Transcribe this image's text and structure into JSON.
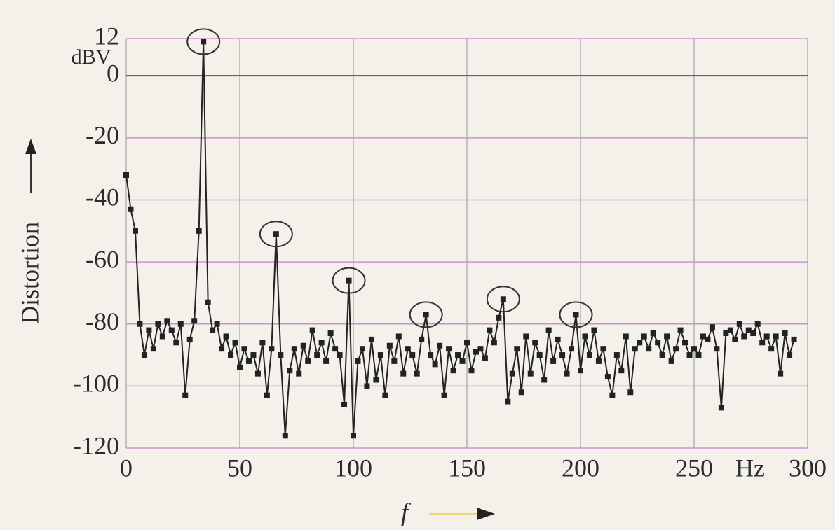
{
  "chart_data": {
    "type": "line",
    "y_label": "Distortion",
    "y_unit": "dBV",
    "x_label": "f",
    "x_unit": "Hz",
    "x": [
      0,
      2,
      4,
      6,
      8,
      10,
      12,
      14,
      16,
      18,
      20,
      22,
      24,
      26,
      28,
      30,
      32,
      34,
      36,
      38,
      40,
      42,
      44,
      46,
      48,
      50,
      52,
      54,
      56,
      58,
      60,
      62,
      64,
      66,
      68,
      70,
      72,
      74,
      76,
      78,
      80,
      82,
      84,
      86,
      88,
      90,
      92,
      94,
      96,
      98,
      100,
      102,
      104,
      106,
      108,
      110,
      112,
      114,
      116,
      118,
      120,
      122,
      124,
      126,
      128,
      130,
      132,
      134,
      136,
      138,
      140,
      142,
      144,
      146,
      148,
      150,
      152,
      154,
      156,
      158,
      160,
      162,
      164,
      166,
      168,
      170,
      172,
      174,
      176,
      178,
      180,
      182,
      184,
      186,
      188,
      190,
      192,
      194,
      196,
      198,
      200,
      202,
      204,
      206,
      208,
      210,
      212,
      214,
      216,
      218,
      220,
      222,
      224,
      226,
      228,
      230,
      232,
      234,
      236,
      238,
      240,
      242,
      244,
      246,
      248,
      250,
      252,
      254,
      256,
      258,
      260,
      262,
      264,
      266,
      268,
      270,
      272,
      274,
      276,
      278,
      280,
      282,
      284,
      286,
      288,
      290,
      292,
      294
    ],
    "series": [
      {
        "color": "#222222",
        "values": [
          -32,
          -43,
          -50,
          -80,
          -90,
          -82,
          -88,
          -80,
          -84,
          -79,
          -82,
          -86,
          -80,
          -103,
          -85,
          -79,
          -50,
          11,
          -73,
          -82,
          -80,
          -88,
          -84,
          -90,
          -86,
          -94,
          -88,
          -92,
          -90,
          -96,
          -86,
          -103,
          -88,
          -51,
          -90,
          -116,
          -95,
          -88,
          -96,
          -87,
          -92,
          -82,
          -90,
          -86,
          -92,
          -83,
          -88,
          -90,
          -106,
          -66,
          -116,
          -92,
          -88,
          -100,
          -85,
          -98,
          -90,
          -103,
          -87,
          -92,
          -84,
          -96,
          -88,
          -90,
          -96,
          -85,
          -77,
          -90,
          -93,
          -87,
          -103,
          -88,
          -95,
          -90,
          -92,
          -86,
          -95,
          -89,
          -88,
          -91,
          -82,
          -86,
          -78,
          -72,
          -105,
          -96,
          -88,
          -102,
          -84,
          -96,
          -86,
          -90,
          -98,
          -82,
          -92,
          -85,
          -90,
          -96,
          -88,
          -77,
          -95,
          -84,
          -90,
          -82,
          -92,
          -88,
          -97,
          -103,
          -90,
          -95,
          -84,
          -102,
          -88,
          -86,
          -84,
          -88,
          -83,
          -86,
          -90,
          -84,
          -92,
          -88,
          -82,
          -86,
          -90,
          -88,
          -90,
          -84,
          -85,
          -81,
          -88,
          -107,
          -83,
          -82,
          -85,
          -80,
          -84,
          -82,
          -83,
          -80,
          -86,
          -84,
          -88,
          -84,
          -96,
          -83,
          -90,
          -85
        ]
      }
    ],
    "circled_x": [
      34,
      66,
      98,
      132,
      166,
      198
    ],
    "xlim": [
      0,
      300
    ],
    "xticks": [
      0,
      50,
      100,
      150,
      200,
      250,
      300
    ],
    "ylim": [
      -120,
      12
    ],
    "yticks": [
      12,
      0,
      -20,
      -40,
      -60,
      -80,
      -100,
      -120
    ],
    "grid": true
  }
}
